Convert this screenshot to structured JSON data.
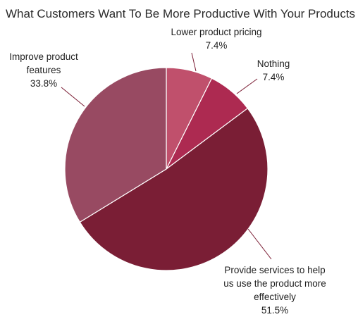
{
  "chart_data": {
    "type": "pie",
    "title": "What Customers Want To Be More Productive With Your Products",
    "slices": [
      {
        "label_lines": [
          "Lower product pricing"
        ],
        "value_label": "7.4%",
        "value": 7.4,
        "color": "#c0506c"
      },
      {
        "label_lines": [
          "Nothing"
        ],
        "value_label": "7.4%",
        "value": 7.4,
        "color": "#ad2a51"
      },
      {
        "label_lines": [
          "Provide services to help",
          "us use the product more",
          "effectively"
        ],
        "value_label": "51.5%",
        "value": 51.5,
        "color": "#7a1e35"
      },
      {
        "label_lines": [
          "Improve product",
          "features"
        ],
        "value_label": "33.8%",
        "value": 33.8,
        "color": "#984a62"
      }
    ]
  }
}
